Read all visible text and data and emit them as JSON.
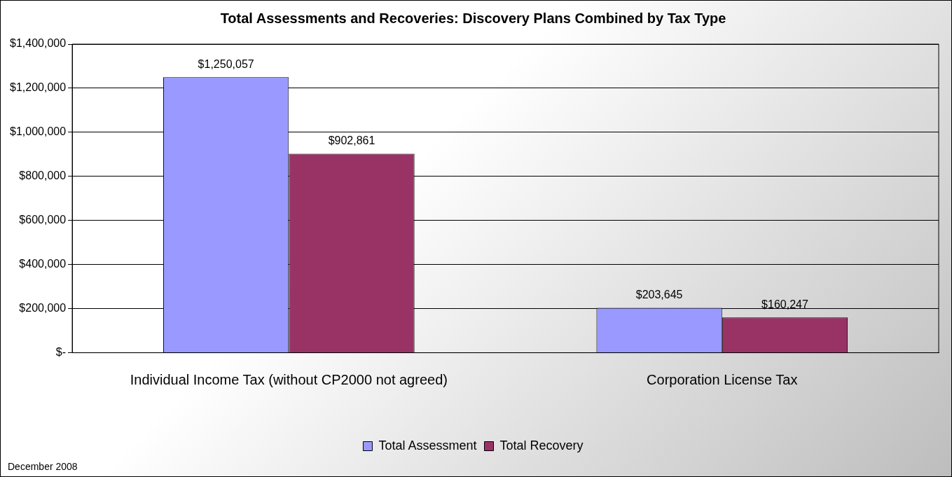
{
  "chart_data": {
    "type": "bar",
    "title": "Total Assessments and Recoveries: Discovery Plans Combined by Tax Type",
    "categories": [
      "Individual Income Tax (without CP2000 not agreed)",
      "Corporation License Tax"
    ],
    "series": [
      {
        "name": "Total Assessment",
        "color": "#9999ff",
        "values": [
          1250057,
          203645
        ],
        "value_labels": [
          "$1,250,057",
          "$203,645"
        ]
      },
      {
        "name": "Total Recovery",
        "color": "#993366",
        "values": [
          902861,
          160247
        ],
        "value_labels": [
          "$902,861",
          "$160,247"
        ]
      }
    ],
    "ylim": [
      0,
      1400000
    ],
    "yticks": [
      {
        "value": 0,
        "label": "$-"
      },
      {
        "value": 200000,
        "label": "$200,000"
      },
      {
        "value": 400000,
        "label": "$400,000"
      },
      {
        "value": 600000,
        "label": "$600,000"
      },
      {
        "value": 800000,
        "label": "$800,000"
      },
      {
        "value": 1000000,
        "label": "$1,000,000"
      },
      {
        "value": 1200000,
        "label": "$1,200,000"
      },
      {
        "value": 1400000,
        "label": "$1,400,000"
      }
    ],
    "grid": "y",
    "legend": "bottom",
    "annotations": [
      "December 2008"
    ]
  }
}
